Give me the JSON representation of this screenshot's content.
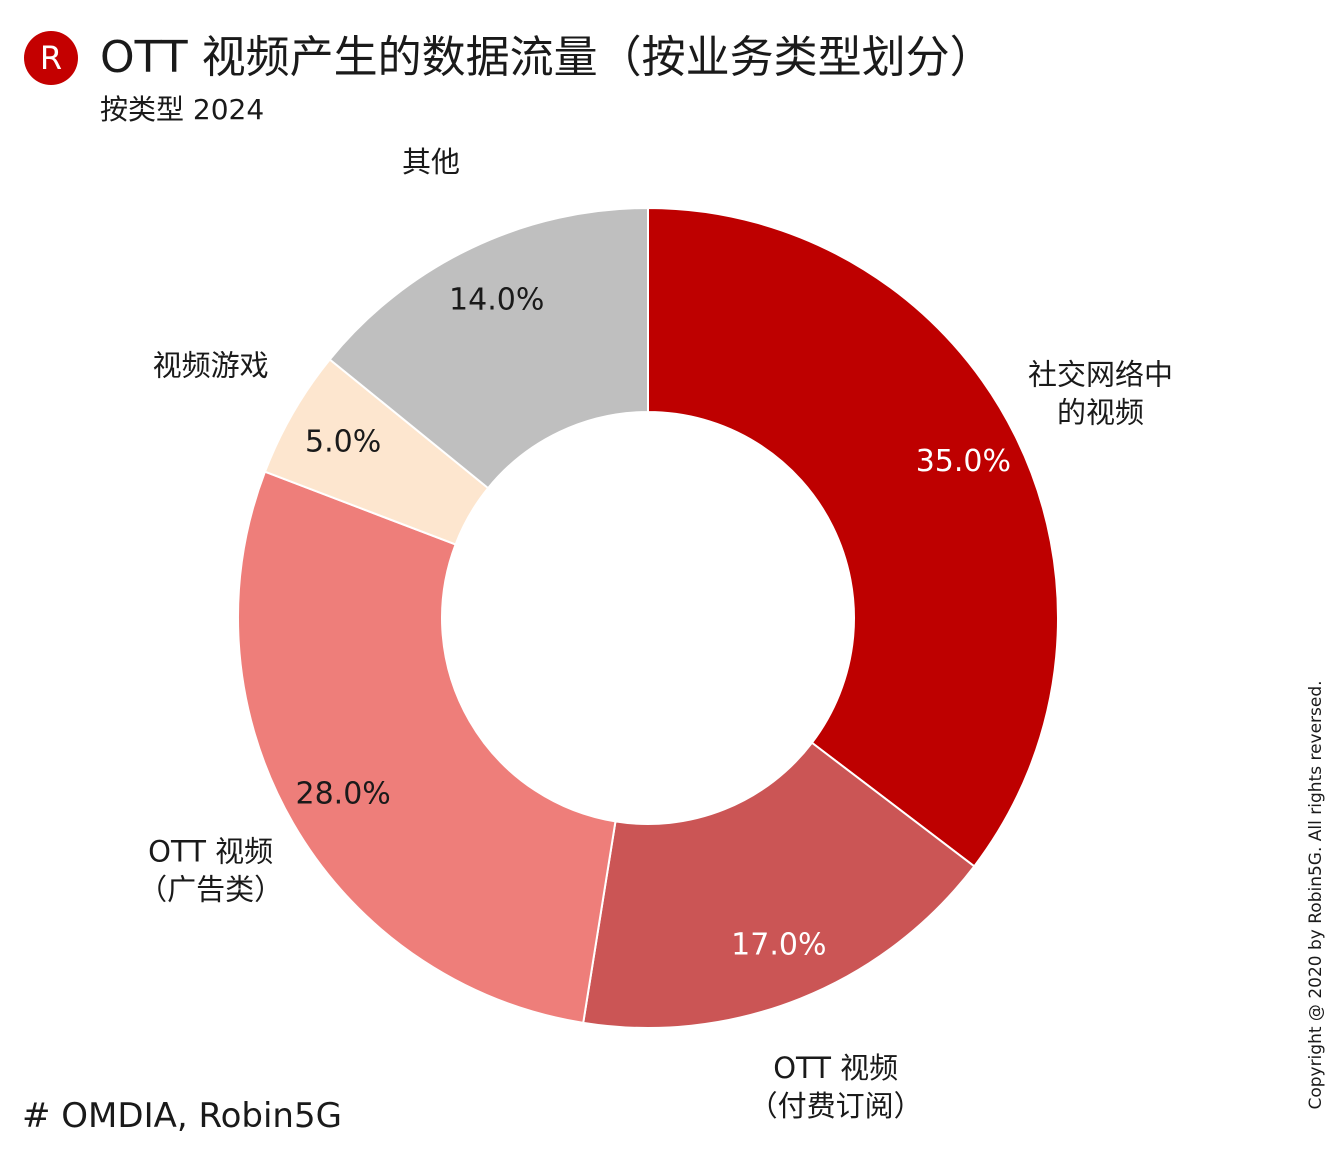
{
  "header": {
    "logo_letter": "R",
    "title": "OTT 视频产生的数据流量（按业务类型划分）",
    "subtitle": "按类型 2024"
  },
  "footer": {
    "source": "# OMDIA, Robin5G",
    "copyright": "Copyright @ 2020 by Robin5G. All rights reversed."
  },
  "colors": {
    "brand_red": "#c40000"
  },
  "chart_data": {
    "type": "pie",
    "donut": true,
    "title": "OTT 视频产生的数据流量（按业务类型划分）",
    "subtitle": "按类型 2024",
    "categories": [
      [
        "社交网络中",
        "的视频"
      ],
      [
        "OTT 视频",
        "（付费订阅）"
      ],
      [
        "OTT 视频",
        "（广告类）"
      ],
      [
        "视频游戏"
      ],
      [
        "其他"
      ]
    ],
    "values": [
      35.0,
      17.0,
      28.0,
      5.0,
      14.0
    ],
    "value_labels": [
      "35.0%",
      "17.0%",
      "28.0%",
      "5.0%",
      "14.0%"
    ],
    "colors": [
      "#be0000",
      "#cb5555",
      "#ee7e7a",
      "#fde6cf",
      "#bfbfbf"
    ],
    "value_label_colors": [
      "#ffffff",
      "#ffffff",
      "#1a1a1a",
      "#1a1a1a",
      "#1a1a1a"
    ],
    "start_angle": "12 o'clock",
    "direction": "clockwise"
  }
}
